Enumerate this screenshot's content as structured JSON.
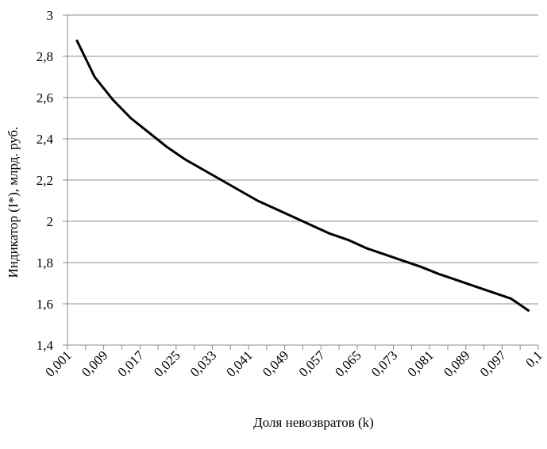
{
  "chart_data": {
    "type": "line",
    "y_label": "Индикатор (I*), млрд. руб.",
    "x_label": "Доля невозвратов (k)",
    "categories": [
      "0,001",
      null,
      "0,009",
      null,
      "0,017",
      null,
      "0,025",
      null,
      "0,033",
      null,
      "0,041",
      null,
      "0,049",
      null,
      "0,057",
      null,
      "0,065",
      null,
      "0,073",
      null,
      "0,081",
      null,
      "0,089",
      null,
      "0,097",
      null
    ],
    "x_end_label": "0,1",
    "series": [
      {
        "name": "I*",
        "color": "#000000",
        "values": [
          2.88,
          2.7,
          2.59,
          2.5,
          2.43,
          2.36,
          2.3,
          2.25,
          2.2,
          2.15,
          2.1,
          2.06,
          2.02,
          1.98,
          1.94,
          1.91,
          1.87,
          1.84,
          1.81,
          1.78,
          1.745,
          1.715,
          1.685,
          1.655,
          1.625,
          1.565
        ]
      }
    ],
    "ylim": [
      1.4,
      3
    ],
    "yticks": [
      {
        "value": 1.4,
        "label": "1,4"
      },
      {
        "value": 1.6,
        "label": "1,6"
      },
      {
        "value": 1.8,
        "label": "1,8"
      },
      2,
      {
        "value": 2.2,
        "label": "2,2"
      },
      {
        "value": 2.4,
        "label": "2,4"
      },
      {
        "value": 2.6,
        "label": "2,6"
      },
      {
        "value": 2.8,
        "label": "2,8"
      },
      3
    ],
    "grid": true
  }
}
